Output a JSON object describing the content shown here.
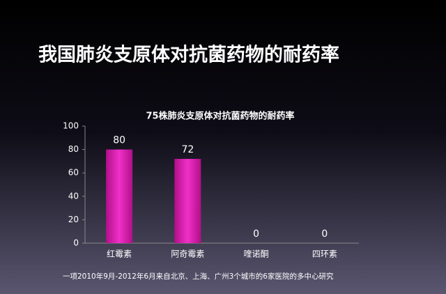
{
  "slide_title": "我国肺炎支原体对抗菌药物的耐药率",
  "chart_data": {
    "type": "bar",
    "title": "75株肺炎支原体对抗菌药物的耐药率",
    "categories": [
      "红霉素",
      "阿奇霉素",
      "喹诺酮",
      "四环素"
    ],
    "values": [
      80,
      72,
      0,
      0
    ],
    "color": "#e020b4",
    "ylim": [
      0,
      100
    ],
    "yticks": [
      0,
      20,
      40,
      60,
      80,
      100
    ]
  },
  "footnote": "一项2010年9月-2012年6月来自北京、上海、广州3个城市的6家医院的多中心研究"
}
